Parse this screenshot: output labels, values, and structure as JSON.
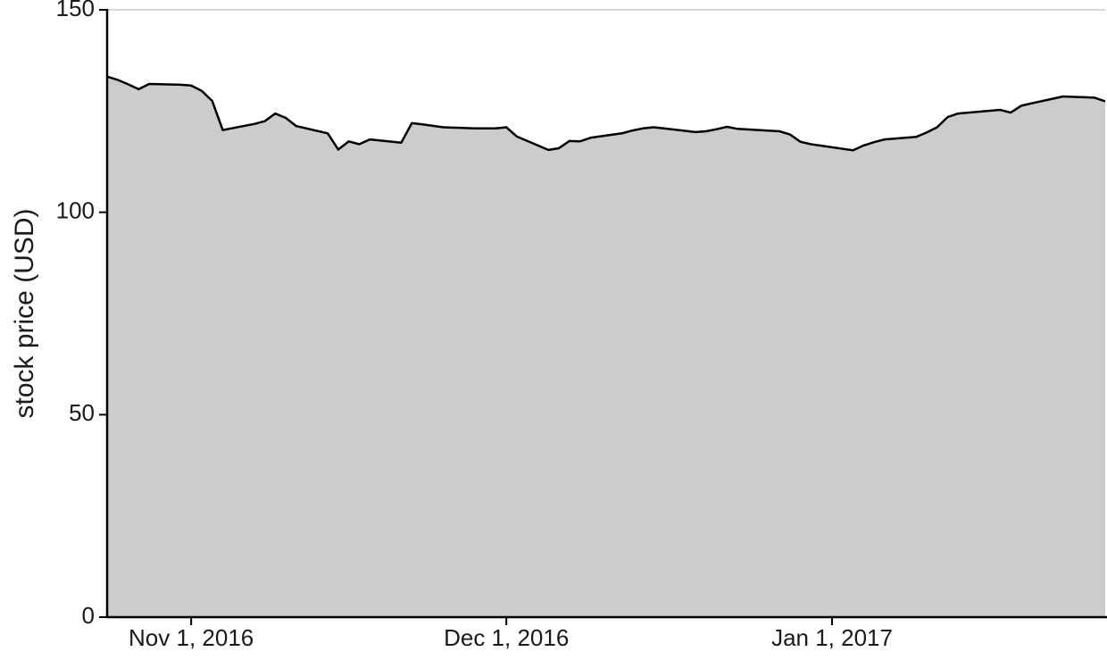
{
  "chart_data": {
    "type": "area",
    "title": "",
    "xlabel": "",
    "ylabel": "stock price (USD)",
    "ylim": [
      0,
      150
    ],
    "xlim": [
      "2016-10-24",
      "2017-01-27"
    ],
    "y_ticks": [
      0,
      50,
      100,
      150
    ],
    "x_ticks": [
      {
        "date": "2016-11-01",
        "label": "Nov 1, 2016"
      },
      {
        "date": "2016-12-01",
        "label": "Dec 1, 2016"
      },
      {
        "date": "2017-01-01",
        "label": "Jan 1, 2017"
      }
    ],
    "grid": "horizontal",
    "colors": {
      "fill": "#cccccc",
      "line": "#000000",
      "grid": "#d9d9d9",
      "axis": "#000000"
    },
    "series": [
      {
        "x": [
          "2016-10-24",
          "2016-10-25",
          "2016-10-26",
          "2016-10-27",
          "2016-10-28",
          "2016-10-31",
          "2016-11-01",
          "2016-11-02",
          "2016-11-03",
          "2016-11-04",
          "2016-11-07",
          "2016-11-08",
          "2016-11-09",
          "2016-11-10",
          "2016-11-11",
          "2016-11-14",
          "2016-11-15",
          "2016-11-16",
          "2016-11-17",
          "2016-11-18",
          "2016-11-21",
          "2016-11-22",
          "2016-11-23",
          "2016-11-25",
          "2016-11-28",
          "2016-11-29",
          "2016-11-30",
          "2016-12-01",
          "2016-12-02",
          "2016-12-05",
          "2016-12-06",
          "2016-12-07",
          "2016-12-08",
          "2016-12-09",
          "2016-12-12",
          "2016-12-13",
          "2016-12-14",
          "2016-12-15",
          "2016-12-16",
          "2016-12-19",
          "2016-12-20",
          "2016-12-21",
          "2016-12-22",
          "2016-12-23",
          "2016-12-27",
          "2016-12-28",
          "2016-12-29",
          "2016-12-30",
          "2017-01-03",
          "2017-01-04",
          "2017-01-05",
          "2017-01-06",
          "2017-01-09",
          "2017-01-10",
          "2017-01-11",
          "2017-01-12",
          "2017-01-13",
          "2017-01-17",
          "2017-01-18",
          "2017-01-19",
          "2017-01-20",
          "2017-01-23",
          "2017-01-24",
          "2017-01-25",
          "2017-01-26",
          "2017-01-27"
        ],
        "values": [
          133.5,
          132.7,
          131.6,
          130.4,
          131.7,
          131.5,
          131.3,
          130.0,
          127.5,
          120.3,
          121.8,
          122.5,
          124.4,
          123.3,
          121.3,
          119.5,
          115.5,
          117.5,
          116.8,
          118.0,
          117.2,
          122.0,
          121.7,
          121.0,
          120.7,
          120.7,
          120.7,
          121.0,
          118.7,
          115.4,
          115.8,
          117.6,
          117.5,
          118.4,
          119.5,
          120.2,
          120.7,
          121.0,
          120.7,
          119.8,
          120.0,
          120.5,
          121.1,
          120.6,
          120.0,
          119.2,
          117.4,
          116.8,
          115.3,
          116.5,
          117.3,
          118.0,
          118.6,
          119.7,
          121.0,
          123.5,
          124.4,
          125.3,
          124.6,
          126.3,
          126.9,
          128.6,
          128.5,
          128.4,
          128.3,
          127.4
        ]
      }
    ]
  }
}
